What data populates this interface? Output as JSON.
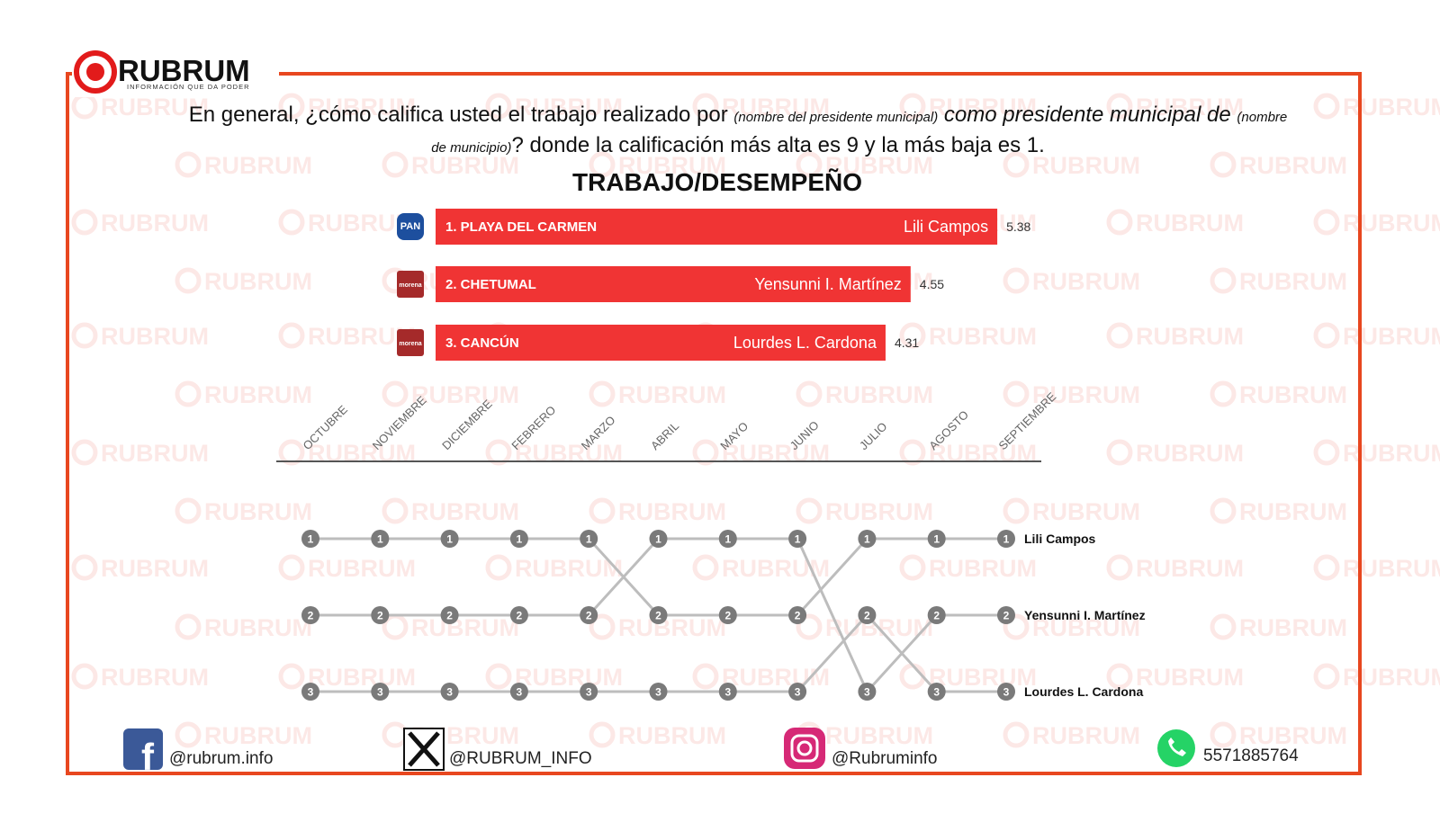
{
  "brand": "RUBRUM",
  "tagline": "INFORMACIÓN QUE DA PODER",
  "question": [
    "En general, ¿cómo califica usted el trabajo realizado por ",
    "(nombre del presidente municipal)",
    " como presidente municipal de ",
    " (nombre de municipio)",
    "? donde la calificación más alta es 9 y la más baja es 1."
  ],
  "chart_data": [
    {
      "type": "bar",
      "orientation": "horizontal",
      "title": "TRABAJO/DESEMPEÑO",
      "categories": [
        "1. PLAYA DEL CARMEN",
        "2. CHETUMAL",
        "3. CANCÚN"
      ],
      "labels": [
        "Lili Campos",
        "Yensunni I. Martínez",
        "Lourdes L. Cardona"
      ],
      "party": [
        "PAN",
        "morena",
        "morena"
      ],
      "values": [
        5.38,
        4.55,
        4.31
      ],
      "color": "#f03434"
    },
    {
      "type": "bump",
      "categories": [
        "OCTUBRE",
        "NOVIEMBRE",
        "DICIEMBRE",
        "FEBRERO",
        "MARZO",
        "ABRIL",
        "MAYO",
        "JUNIO",
        "JULIO",
        "AGOSTO",
        "SEPTIEMBRE"
      ],
      "series": [
        {
          "name": "Lili Campos",
          "color": "#7a7a7a",
          "values": [
            1,
            1,
            1,
            1,
            1,
            2,
            2,
            2,
            1,
            1,
            1
          ]
        },
        {
          "name": "Yensunni I. Martínez",
          "color": "#7a7a7a",
          "values": [
            2,
            2,
            2,
            2,
            2,
            1,
            1,
            1,
            3,
            2,
            2
          ]
        },
        {
          "name": "Lourdes L. Cardona",
          "color": "#7a7a7a",
          "values": [
            3,
            3,
            3,
            3,
            3,
            3,
            3,
            3,
            2,
            3,
            3
          ]
        }
      ]
    }
  ],
  "social": {
    "facebook": "@rubrum.info",
    "x": "@RUBRUM_INFO",
    "instagram": "@Rubruminfo",
    "whatsapp": "5571885764"
  }
}
